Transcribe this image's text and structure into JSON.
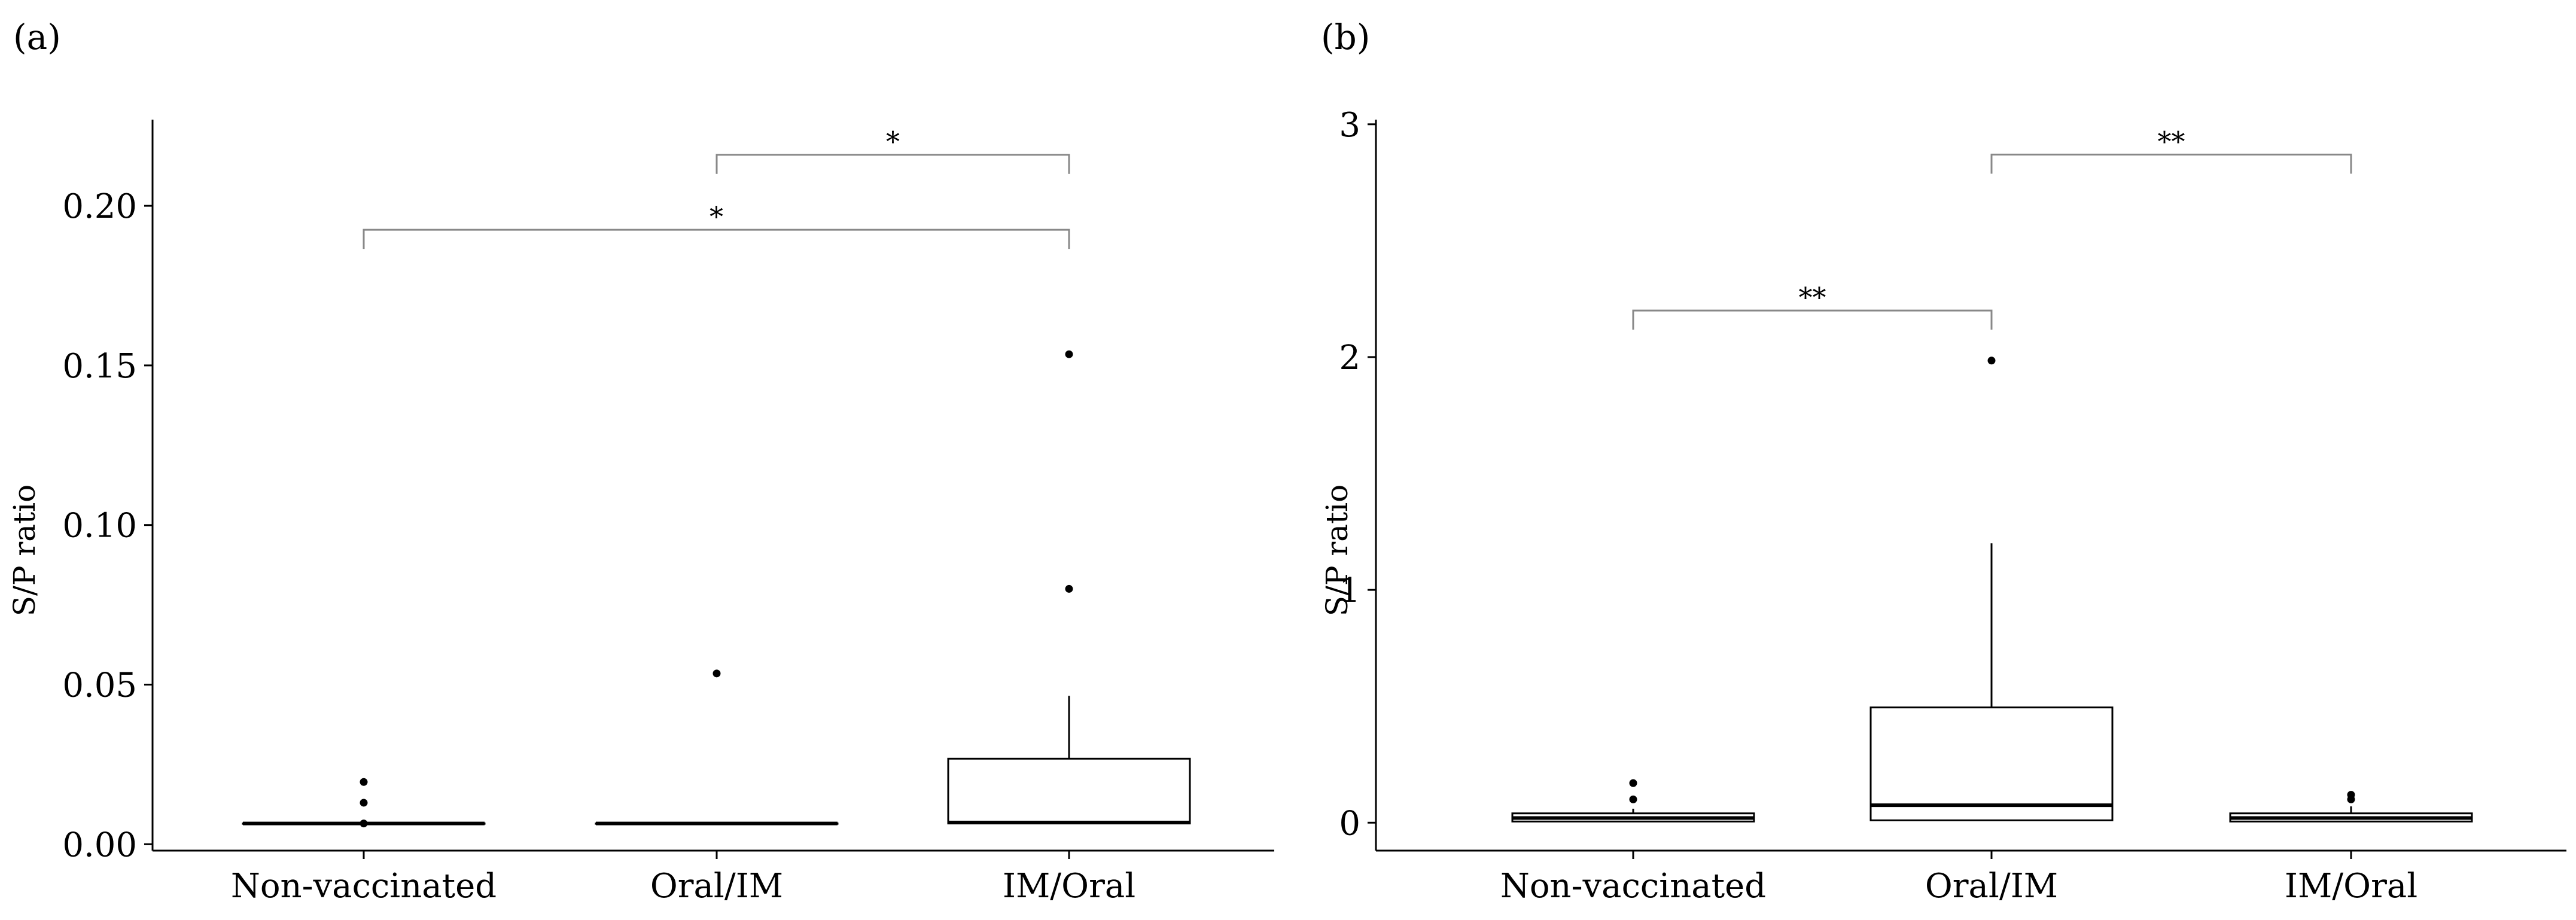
{
  "figure": {
    "colors": {
      "axis": "#000000",
      "box": "#000000",
      "bracket": "#888888",
      "background": "#ffffff"
    }
  },
  "chart_data": [
    {
      "panel_label": "(a)",
      "type": "boxplot",
      "ylabel": "S/P ratio",
      "xlabel": "",
      "ylim": [
        -0.002,
        0.227
      ],
      "yticks": [
        0.0,
        0.05,
        0.1,
        0.15,
        0.2
      ],
      "ytick_labels": [
        "0.00",
        "0.05",
        "0.10",
        "0.15",
        "0.20"
      ],
      "categories": [
        "Non-vaccinated",
        "Oral/IM",
        "IM/Oral"
      ],
      "boxes": [
        {
          "category": "Non-vaccinated",
          "q1": 0.0065,
          "median": 0.0065,
          "q3": 0.0065,
          "whisker_low": 0.0065,
          "whisker_high": 0.0065,
          "outliers": [
            0.0065,
            0.013,
            0.0195
          ]
        },
        {
          "category": "Oral/IM",
          "q1": 0.0065,
          "median": 0.0065,
          "q3": 0.0065,
          "whisker_low": 0.0065,
          "whisker_high": 0.0065,
          "outliers": [
            0.0535
          ]
        },
        {
          "category": "IM/Oral",
          "q1": 0.0065,
          "median": 0.0068,
          "q3": 0.0268,
          "whisker_low": 0.0065,
          "whisker_high": 0.0465,
          "outliers": [
            0.08,
            0.1535
          ]
        }
      ],
      "significance": [
        {
          "from": "Oral/IM",
          "to": "IM/Oral",
          "y": 0.216,
          "label": "*"
        },
        {
          "from": "Non-vaccinated",
          "to": "IM/Oral",
          "y": 0.1925,
          "label": "*"
        }
      ]
    },
    {
      "panel_label": "(b)",
      "type": "boxplot",
      "ylabel": "S/P ratio",
      "xlabel": "",
      "ylim": [
        -0.12,
        3.02
      ],
      "yticks": [
        0,
        1,
        2,
        3
      ],
      "ytick_labels": [
        "0",
        "1",
        "2",
        "3"
      ],
      "categories": [
        "Non-vaccinated",
        "Oral/IM",
        "IM/Oral"
      ],
      "boxes": [
        {
          "category": "Non-vaccinated",
          "q1": 0.005,
          "median": 0.02,
          "q3": 0.04,
          "whisker_low": 0.005,
          "whisker_high": 0.06,
          "outliers": [
            0.1,
            0.17
          ]
        },
        {
          "category": "Oral/IM",
          "q1": 0.01,
          "median": 0.075,
          "q3": 0.495,
          "whisker_low": 0.01,
          "whisker_high": 1.2,
          "outliers": [
            1.985
          ]
        },
        {
          "category": "IM/Oral",
          "q1": 0.005,
          "median": 0.02,
          "q3": 0.04,
          "whisker_low": 0.005,
          "whisker_high": 0.07,
          "outliers": [
            0.1,
            0.12
          ]
        }
      ],
      "significance": [
        {
          "from": "Oral/IM",
          "to": "IM/Oral",
          "y": 2.87,
          "label": "**"
        },
        {
          "from": "Non-vaccinated",
          "to": "Oral/IM",
          "y": 2.2,
          "label": "**"
        }
      ]
    }
  ]
}
